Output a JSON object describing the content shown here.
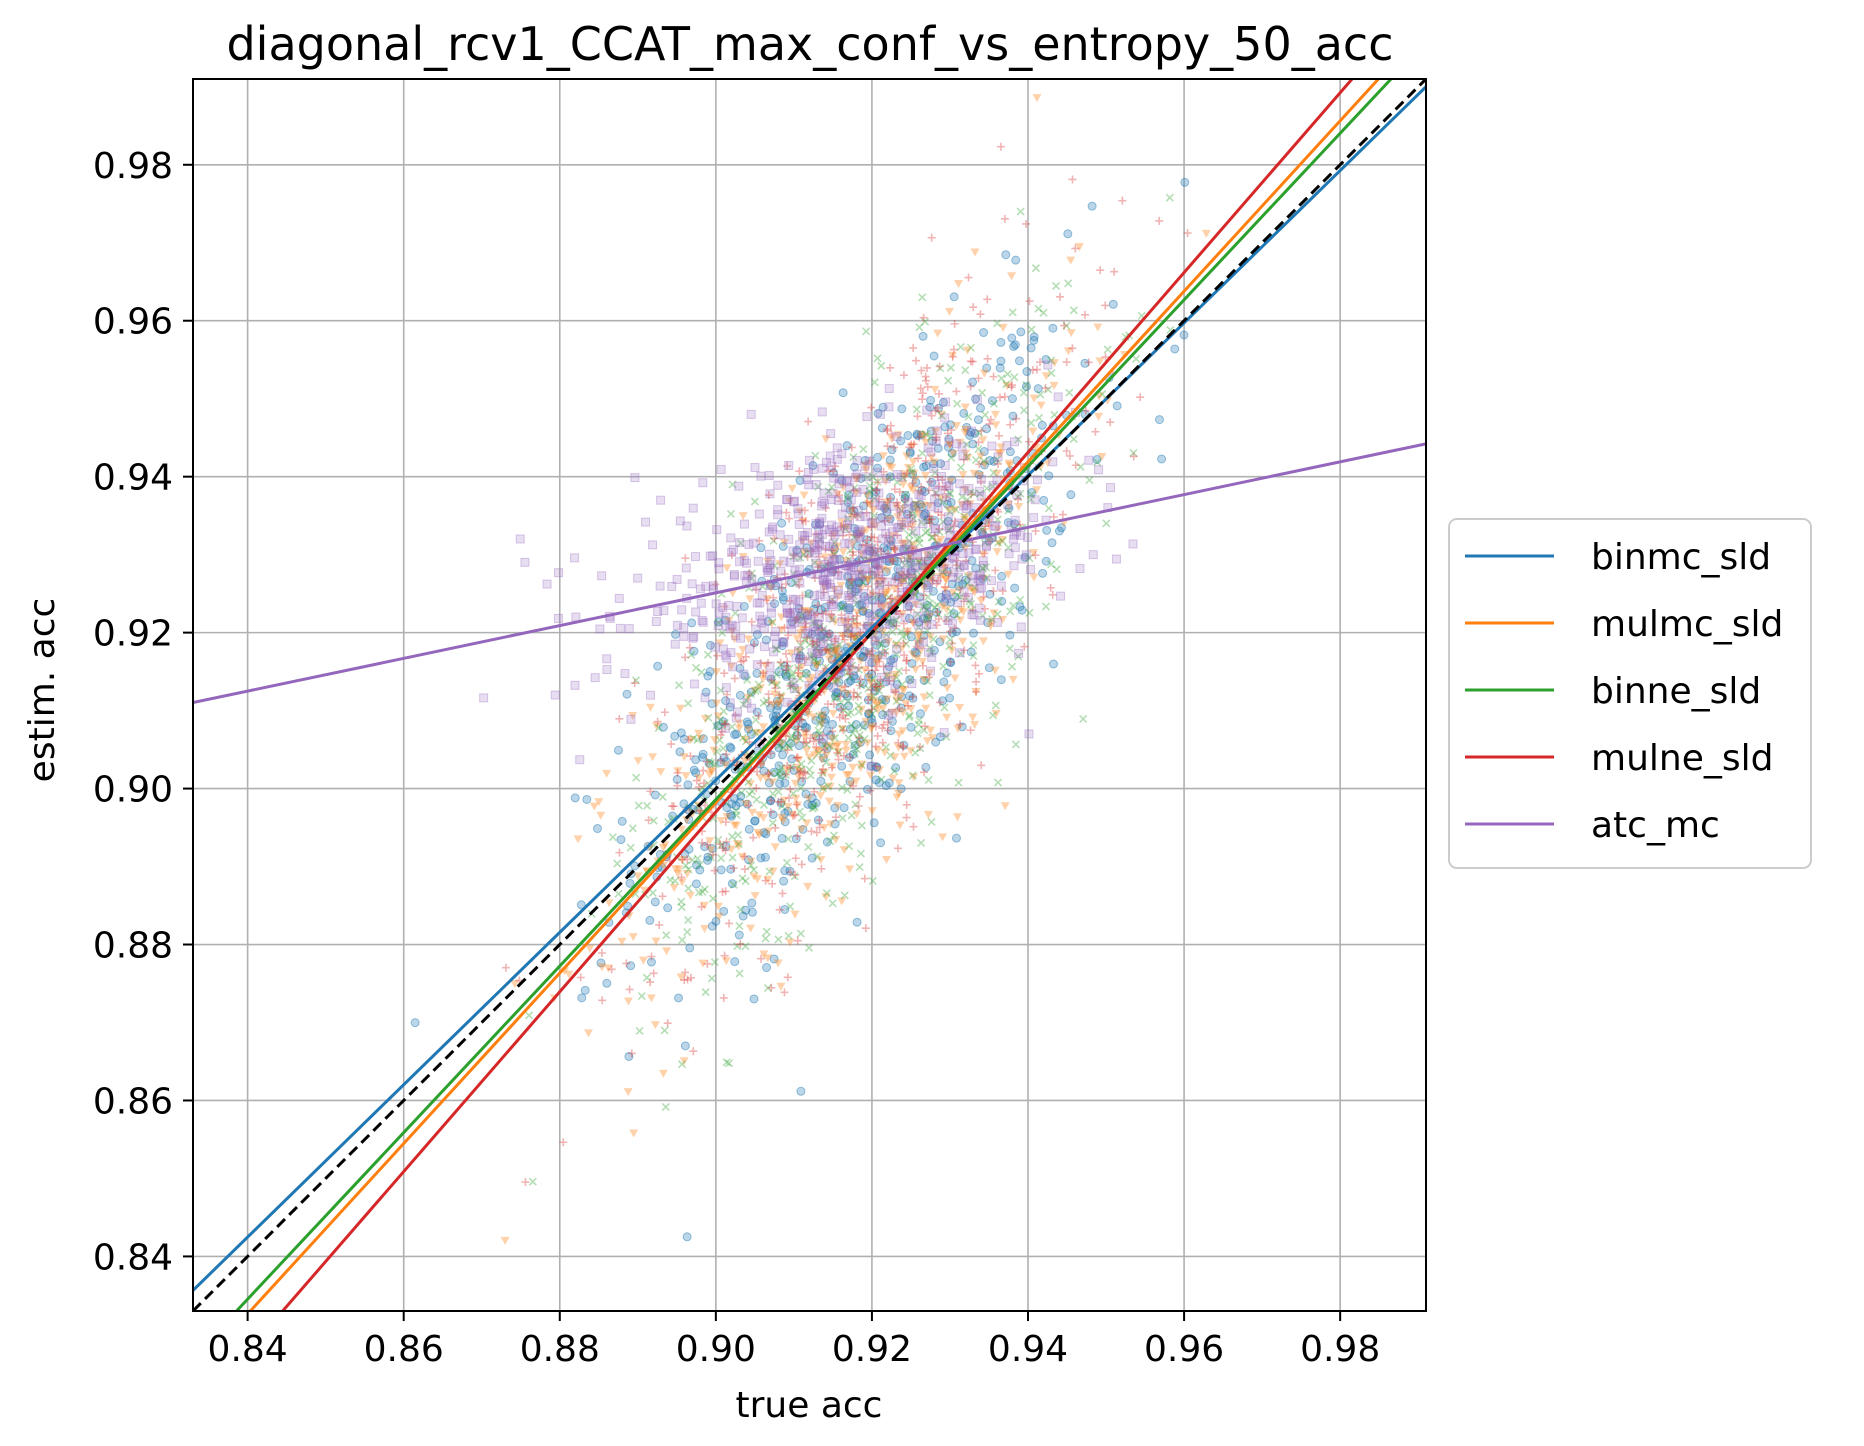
{
  "chart_data": {
    "type": "scatter",
    "title": "diagonal_rcv1_CCAT_max_conf_vs_entropy_50_acc",
    "xlabel": "true acc",
    "ylabel": "estim. acc",
    "xlim": [
      0.833,
      0.991
    ],
    "ylim": [
      0.833,
      0.991
    ],
    "xticks": [
      0.84,
      0.86,
      0.88,
      0.9,
      0.92,
      0.94,
      0.96,
      0.98
    ],
    "yticks": [
      0.84,
      0.86,
      0.88,
      0.9,
      0.92,
      0.94,
      0.96,
      0.98
    ],
    "xtick_labels": [
      "0.84",
      "0.86",
      "0.88",
      "0.90",
      "0.92",
      "0.94",
      "0.96",
      "0.98"
    ],
    "ytick_labels": [
      "0.84",
      "0.86",
      "0.88",
      "0.90",
      "0.92",
      "0.94",
      "0.96",
      "0.98"
    ],
    "grid": true,
    "legend_position": "right, outside plot",
    "reference_line": {
      "style": "dashed",
      "color": "#000000",
      "slope": 1,
      "intercept": 0
    },
    "series": [
      {
        "name": "binmc_sld",
        "color": "#1f77b4",
        "marker": "circle",
        "fit": {
          "slope": 0.977,
          "intercept": 0.0218
        },
        "cloud": {
          "x_mean": 0.918,
          "x_sd": 0.014,
          "y_mean": 0.919,
          "y_sd": 0.019,
          "corr": 0.72,
          "count": 650
        }
      },
      {
        "name": "mulmc_sld",
        "color": "#ff7f0e",
        "marker": "triangle-down",
        "fit": {
          "slope": 1.093,
          "intercept": -0.0855
        },
        "cloud": {
          "x_mean": 0.918,
          "x_sd": 0.014,
          "y_mean": 0.918,
          "y_sd": 0.02,
          "corr": 0.74,
          "count": 650
        }
      },
      {
        "name": "binne_sld",
        "color": "#2ca02c",
        "marker": "x",
        "fit": {
          "slope": 1.068,
          "intercept": -0.0626
        },
        "cloud": {
          "x_mean": 0.918,
          "x_sd": 0.014,
          "y_mean": 0.918,
          "y_sd": 0.02,
          "corr": 0.73,
          "count": 650
        }
      },
      {
        "name": "mulne_sld",
        "color": "#d62728",
        "marker": "plus",
        "fit": {
          "slope": 1.153,
          "intercept": -0.1407
        },
        "cloud": {
          "x_mean": 0.918,
          "x_sd": 0.014,
          "y_mean": 0.921,
          "y_sd": 0.021,
          "corr": 0.75,
          "count": 650
        }
      },
      {
        "name": "atc_mc",
        "color": "#9467bd",
        "marker": "square",
        "fit": {
          "slope": 0.21,
          "intercept": 0.7361
        },
        "cloud": {
          "x_mean": 0.917,
          "x_sd": 0.014,
          "y_mean": 0.928,
          "y_sd": 0.008,
          "corr": 0.35,
          "count": 650
        }
      }
    ]
  }
}
